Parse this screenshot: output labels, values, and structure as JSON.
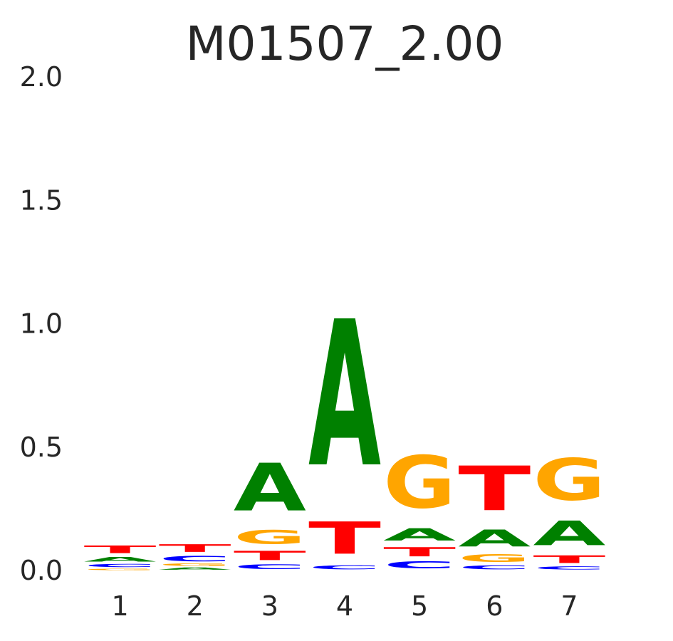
{
  "chart_data": {
    "type": "sequence-logo",
    "title": "M01507_2.00",
    "xlabel": "",
    "ylabel": "",
    "ylim": [
      0,
      2
    ],
    "yticks": [
      "0.0",
      "0.5",
      "1.0",
      "1.5",
      "2.0"
    ],
    "categories": [
      "1",
      "2",
      "3",
      "4",
      "5",
      "6",
      "7"
    ],
    "grid": false,
    "colors": {
      "A": "#008000",
      "C": "#0000ff",
      "G": "#ffa500",
      "T": "#ff0000"
    },
    "positions": [
      {
        "position": "1",
        "letters": [
          {
            "base": "G",
            "value": 0.01
          },
          {
            "base": "C",
            "value": 0.02
          },
          {
            "base": "A",
            "value": 0.03
          },
          {
            "base": "T",
            "value": 0.05
          }
        ]
      },
      {
        "position": "2",
        "letters": [
          {
            "base": "A",
            "value": 0.015
          },
          {
            "base": "G",
            "value": 0.015
          },
          {
            "base": "C",
            "value": 0.035
          },
          {
            "base": "T",
            "value": 0.05
          }
        ]
      },
      {
        "position": "3",
        "letters": [
          {
            "base": "C",
            "value": 0.03
          },
          {
            "base": "T",
            "value": 0.06
          },
          {
            "base": "G",
            "value": 0.09
          },
          {
            "base": "A",
            "value": 0.31
          }
        ]
      },
      {
        "position": "4",
        "letters": [
          {
            "base": "C",
            "value": 0.025
          },
          {
            "base": "T",
            "value": 0.21
          },
          {
            "base": "A",
            "value": 0.95
          }
        ]
      },
      {
        "position": "5",
        "letters": [
          {
            "base": "C",
            "value": 0.045
          },
          {
            "base": "T",
            "value": 0.06
          },
          {
            "base": "A",
            "value": 0.08
          },
          {
            "base": "G",
            "value": 0.34
          }
        ]
      },
      {
        "position": "6",
        "letters": [
          {
            "base": "C",
            "value": 0.025
          },
          {
            "base": "G",
            "value": 0.05
          },
          {
            "base": "A",
            "value": 0.11
          },
          {
            "base": "T",
            "value": 0.29
          }
        ]
      },
      {
        "position": "7",
        "letters": [
          {
            "base": "C",
            "value": 0.02
          },
          {
            "base": "T",
            "value": 0.05
          },
          {
            "base": "A",
            "value": 0.16
          },
          {
            "base": "G",
            "value": 0.27
          }
        ]
      }
    ]
  }
}
